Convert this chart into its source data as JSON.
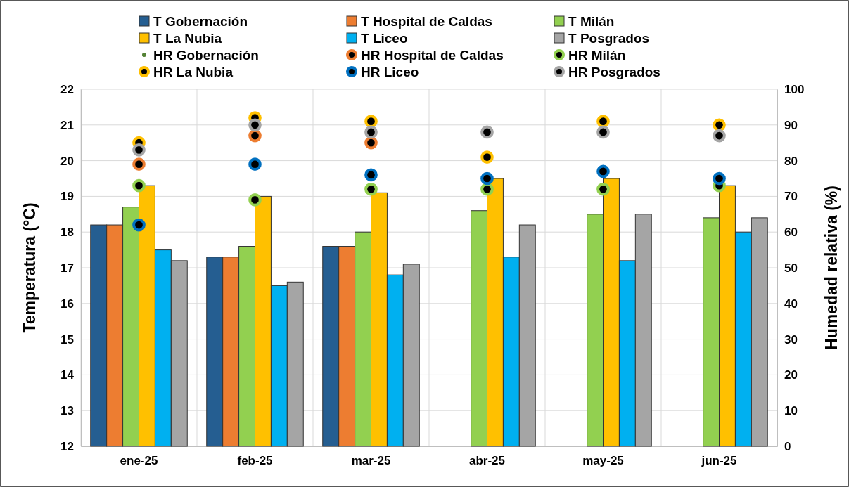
{
  "chart_data": {
    "type": "bar",
    "ylabel": "Temperatura (°C)",
    "y2label": "Humedad relativa (%)",
    "categories": [
      "ene-25",
      "feb-25",
      "mar-25",
      "abr-25",
      "may-25",
      "jun-25"
    ],
    "ylim": [
      12,
      22
    ],
    "yticks": [
      12,
      13,
      14,
      15,
      16,
      17,
      18,
      19,
      20,
      21,
      22
    ],
    "y2lim": [
      0,
      100
    ],
    "y2ticks": [
      0,
      10,
      20,
      30,
      40,
      50,
      60,
      70,
      80,
      90,
      100
    ],
    "grid": true,
    "legend": "top",
    "marker": "circle",
    "series": [
      {
        "name": "T Gobernación",
        "color": "#255e91",
        "values": [
          18.2,
          17.3,
          17.6,
          null,
          null,
          null
        ]
      },
      {
        "name": "T Hospital de Caldas",
        "color": "#ed7d31",
        "values": [
          18.2,
          17.3,
          17.6,
          null,
          null,
          null
        ]
      },
      {
        "name": "T Milán",
        "color": "#92d050",
        "values": [
          18.7,
          17.6,
          18.0,
          18.6,
          18.5,
          18.4
        ]
      },
      {
        "name": "T La Nubia",
        "color": "#ffc000",
        "values": [
          19.3,
          19.0,
          19.1,
          19.5,
          19.5,
          19.3
        ]
      },
      {
        "name": "T Liceo",
        "color": "#00b0f0",
        "values": [
          17.5,
          16.5,
          16.8,
          17.3,
          17.2,
          18.0
        ]
      },
      {
        "name": "T Posgrados",
        "color": "#a5a5a5",
        "values": [
          17.2,
          16.6,
          17.1,
          18.2,
          18.5,
          18.4
        ]
      },
      {
        "name": "HR Gobernación",
        "type": "scatter",
        "axis": "y2",
        "color": "#548235",
        "values": [
          null,
          null,
          null,
          null,
          null,
          null
        ]
      },
      {
        "name": "HR Hospital de Caldas",
        "type": "scatter",
        "axis": "y2",
        "color": "#ed7d31",
        "values": [
          79,
          87,
          85,
          null,
          null,
          null
        ]
      },
      {
        "name": "HR Milán",
        "type": "scatter",
        "axis": "y2",
        "color": "#92d050",
        "values": [
          73,
          69,
          72,
          72,
          72,
          73
        ]
      },
      {
        "name": "HR La Nubia",
        "type": "scatter",
        "axis": "y2",
        "color": "#ffc000",
        "values": [
          85,
          92,
          91,
          81,
          91,
          90
        ]
      },
      {
        "name": "HR Liceo",
        "type": "scatter",
        "axis": "y2",
        "color": "#0070c0",
        "values": [
          62,
          79,
          76,
          75,
          77,
          75
        ]
      },
      {
        "name": "HR Posgrados",
        "type": "scatter",
        "axis": "y2",
        "color": "#a5a5a5",
        "values": [
          83,
          90,
          88,
          88,
          88,
          87
        ]
      }
    ]
  }
}
